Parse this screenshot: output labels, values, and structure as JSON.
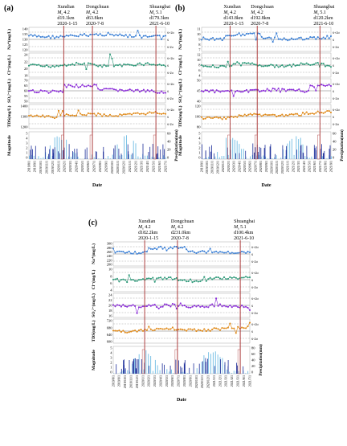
{
  "panels": [
    {
      "label": "(a)",
      "events": [
        {
          "name": "Xundian",
          "mag": "4.2",
          "dist": "d19.1km",
          "date": "2020-1-15"
        },
        {
          "name": "Dongchuan",
          "mag": "4.2",
          "dist": "d63.8km",
          "date": "2020-7-8"
        },
        {
          "name": "Shuangbai",
          "mag": "5.1",
          "dist": "d179.3km",
          "date": "2021-6-10"
        }
      ],
      "ylabels": [
        "Na⁺(mg/L)",
        "Cl⁻(mg/L)",
        "SO₄²⁻(mg/L)",
        "TDS(mg/L)",
        "Magnitude"
      ],
      "right_label": "Precipitation(mm)",
      "xlabel": "Date",
      "sigma_labels": [
        "x̄+2σ",
        "x̄",
        "x̄-2σ"
      ],
      "ticks": {
        "na": [
          "140",
          "135",
          "130",
          "125",
          "120"
        ],
        "cl": [
          "24",
          "22",
          "20",
          "18"
        ],
        "so4": [
          "70",
          "65",
          "60",
          "55",
          "50"
        ],
        "tds": [
          "1400",
          "1300",
          "1200"
        ],
        "mag": [
          "5",
          "4",
          "3",
          "2",
          "1",
          "0"
        ],
        "precip": [
          "60",
          "40",
          "20",
          "0"
        ]
      },
      "dates": [
        "2019/8/1",
        "2019/9/1",
        "2019/10/1",
        "2019/11/1",
        "2019/12/1",
        "2020/1/1",
        "2020/2/1",
        "2020/3/1",
        "2020/4/1",
        "2020/5/1",
        "2020/6/1",
        "2020/7/1",
        "2020/8/1",
        "2020/9/1",
        "2020/10/1",
        "2020/11/1",
        "2020/12/1",
        "2021/1/1",
        "2021/2/1",
        "2021/3/1",
        "2021/4/1",
        "2021/5/1",
        "2021/6/1",
        "2021/7/1"
      ]
    },
    {
      "label": "(b)",
      "events": [
        {
          "name": "Xundian",
          "mag": "4.2",
          "dist": "d143.8km",
          "date": "2020-1-15"
        },
        {
          "name": "Dongchuan",
          "mag": "4.2",
          "dist": "d192.8km",
          "date": "2020-7-8"
        },
        {
          "name": "Shuangbai",
          "mag": "5.1",
          "dist": "d120.2km",
          "date": "2021-6-10"
        }
      ],
      "ylabels": [
        "Na⁺(mg/L)",
        "Cl⁻(mg/L)",
        "SO₄²⁻(mg/L)",
        "TDS(mg/L)",
        "Magnitude"
      ],
      "right_label": "Precipitation(mm)",
      "xlabel": "Date",
      "sigma_labels": [
        "x̄+2σ",
        "x̄",
        "x̄-2σ"
      ],
      "ticks": {
        "na": [
          "11",
          "10",
          "9",
          "8",
          "7"
        ],
        "cl": [
          "12",
          "10",
          "8",
          "6",
          "4"
        ],
        "so4": [
          "50",
          "45",
          "40"
        ],
        "tds": [
          "120",
          "100",
          "80"
        ],
        "mag": [
          "5",
          "4",
          "3",
          "2",
          "1",
          "0"
        ],
        "precip": [
          "60",
          "40",
          "20",
          "0"
        ]
      },
      "dates": [
        "2019/9/1",
        "2019/10/1",
        "2019/11/1",
        "2019/12/1",
        "2020/1/1",
        "2020/2/1",
        "2020/3/1",
        "2020/4/1",
        "2020/5/1",
        "2020/6/1",
        "2020/7/1",
        "2020/8/1",
        "2020/9/1",
        "2020/10/1",
        "2020/11/1",
        "2020/12/1",
        "2021/1/1",
        "2021/2/1",
        "2021/3/1",
        "2021/4/1",
        "2021/5/1",
        "2021/6/1",
        "2021/7/1",
        "2021/8/1",
        "2021/9/1"
      ]
    },
    {
      "label": "(c)",
      "events": [
        {
          "name": "Xundian",
          "mag": "4.2",
          "dist": "d182.2km",
          "date": "2020-1-15"
        },
        {
          "name": "Dongchuan",
          "mag": "4.2",
          "dist": "d231.0km",
          "date": "2020-7-8"
        },
        {
          "name": "Shuangbai",
          "mag": "5.1",
          "dist": "d100.4km",
          "date": "2021-6-10"
        }
      ],
      "ylabels": [
        "Na⁺(mg/L)",
        "Cl⁻(mg/L)",
        "SO₄²⁻(mg/L)",
        "TDS(mg/L)",
        "Magnitude"
      ],
      "right_label": "Precipitation(mm)",
      "xlabel": "Date",
      "sigma_labels": [
        "x̄+2σ",
        "x̄",
        "x̄-2σ"
      ],
      "ticks": {
        "na": [
          "300",
          "280",
          "260",
          "240",
          "220",
          "200"
        ],
        "cl": [
          "10",
          "8",
          "6",
          "4"
        ],
        "so4": [
          "24",
          "22",
          "20",
          "18",
          "16"
        ],
        "tds": [
          "720",
          "680",
          "640",
          "600"
        ],
        "mag": [
          "5",
          "4",
          "3",
          "2",
          "1",
          "0"
        ],
        "precip": [
          "80",
          "60",
          "40",
          "20",
          "0"
        ]
      },
      "dates": [
        "2019/8/1",
        "2019/9/1",
        "2019/10/1",
        "2019/11/1",
        "2019/12/1",
        "2020/1/1",
        "2020/2/1",
        "2020/3/1",
        "2020/4/1",
        "2020/5/1",
        "2020/6/1",
        "2020/7/1",
        "2020/8/1",
        "2020/9/1",
        "2020/10/1",
        "2020/11/1",
        "2020/12/1",
        "2021/1/1",
        "2021/2/1",
        "2021/3/1",
        "2021/4/1",
        "2021/5/1",
        "2021/6/1",
        "2021/7/1"
      ]
    }
  ],
  "colors": {
    "na": "#3a7fd5",
    "cl": "#2f9a7a",
    "so4": "#8a2bd8",
    "tds": "#e08a1a",
    "quake_line": "#a52a2a",
    "mag_bar": "#1e2f9a",
    "precip_bar": "#7ec3e6",
    "guide": "#a83232"
  },
  "chart_data": [
    {
      "type": "line",
      "panel": "(a)",
      "series": [
        {
          "name": "Na⁺(mg/L)",
          "x": [
            "2019/8/1",
            "2019/12/1",
            "2020/1/15",
            "2020/4/1",
            "2020/7/8",
            "2020/10/1",
            "2021/1/1",
            "2021/4/1",
            "2021/6/10",
            "2021/7/1"
          ],
          "values": [
            134,
            133,
            131,
            132,
            133,
            133,
            132,
            132,
            131,
            132
          ]
        },
        {
          "name": "Cl⁻(mg/L)",
          "x": [
            "2019/8/1",
            "2019/12/1",
            "2020/1/15",
            "2020/4/1",
            "2020/7/8",
            "2020/10/1",
            "2021/1/1",
            "2021/4/1",
            "2021/6/10",
            "2021/7/1"
          ],
          "values": [
            21,
            21,
            20.5,
            21,
            21,
            21,
            21.5,
            22,
            21,
            21
          ]
        },
        {
          "name": "SO₄²⁻(mg/L)",
          "x": [
            "2019/8/1",
            "2019/12/1",
            "2020/1/15",
            "2020/4/1",
            "2020/7/8",
            "2020/10/1",
            "2021/1/1",
            "2021/4/1",
            "2021/6/10",
            "2021/7/1"
          ],
          "values": [
            60,
            60,
            64,
            64,
            62,
            62,
            60,
            60,
            64,
            63
          ]
        },
        {
          "name": "TDS(mg/L)",
          "x": [
            "2019/8/1",
            "2019/12/1",
            "2020/1/15",
            "2020/4/1",
            "2020/7/8",
            "2020/10/1",
            "2021/1/1",
            "2021/4/1",
            "2021/6/10",
            "2021/7/1"
          ],
          "values": [
            1310,
            1320,
            1330,
            1335,
            1320,
            1325,
            1330,
            1340,
            1360,
            1350
          ]
        }
      ]
    },
    {
      "type": "line",
      "panel": "(b)",
      "series": [
        {
          "name": "Na⁺(mg/L)",
          "x": [
            "2019/9/1",
            "2019/12/1",
            "2020/1/15",
            "2020/4/1",
            "2020/7/8",
            "2020/10/1",
            "2021/1/1",
            "2021/4/1",
            "2021/6/10",
            "2021/9/1"
          ],
          "values": [
            9.5,
            10,
            10.5,
            10,
            9.5,
            9.5,
            9.3,
            9.2,
            9.5,
            9.5
          ]
        },
        {
          "name": "Cl⁻(mg/L)",
          "x": [
            "2019/9/1",
            "2019/12/1",
            "2020/1/15",
            "2020/4/1",
            "2020/7/8",
            "2020/10/1",
            "2021/1/1",
            "2021/4/1",
            "2021/6/10",
            "2021/9/1"
          ],
          "values": [
            8,
            8,
            8.5,
            8,
            8,
            8,
            8.2,
            8.5,
            9,
            9
          ]
        },
        {
          "name": "SO₄²⁻(mg/L)",
          "x": [
            "2019/9/1",
            "2019/12/1",
            "2020/1/15",
            "2020/4/1",
            "2020/7/8",
            "2020/10/1",
            "2021/1/1",
            "2021/4/1",
            "2021/6/10",
            "2021/9/1"
          ],
          "values": [
            44,
            44,
            45,
            44,
            42,
            42,
            43,
            44,
            47,
            47
          ]
        },
        {
          "name": "TDS(mg/L)",
          "x": [
            "2019/9/1",
            "2019/12/1",
            "2020/1/15",
            "2020/4/1",
            "2020/7/8",
            "2020/10/1",
            "2021/1/1",
            "2021/4/1",
            "2021/6/10",
            "2021/9/1"
          ],
          "values": [
            95,
            98,
            100,
            100,
            97,
            98,
            100,
            102,
            108,
            104
          ]
        }
      ]
    },
    {
      "type": "line",
      "panel": "(c)",
      "series": [
        {
          "name": "Na⁺(mg/L)",
          "x": [
            "2019/8/1",
            "2019/12/1",
            "2020/1/15",
            "2020/4/1",
            "2020/7/8",
            "2020/10/1",
            "2021/1/1",
            "2021/4/1",
            "2021/6/10",
            "2021/7/1"
          ],
          "values": [
            255,
            260,
            270,
            272,
            268,
            255,
            258,
            258,
            255,
            256
          ]
        },
        {
          "name": "Cl⁻(mg/L)",
          "x": [
            "2019/8/1",
            "2019/12/1",
            "2020/1/15",
            "2020/4/1",
            "2020/7/8",
            "2020/10/1",
            "2021/1/1",
            "2021/4/1",
            "2021/6/10",
            "2021/7/1"
          ],
          "values": [
            6,
            6,
            6.2,
            6.2,
            6.3,
            6.5,
            6.8,
            7,
            7.5,
            7.2
          ]
        },
        {
          "name": "SO₄²⁻(mg/L)",
          "x": [
            "2019/8/1",
            "2019/12/1",
            "2020/1/15",
            "2020/4/1",
            "2020/7/8",
            "2020/10/1",
            "2021/1/1",
            "2021/4/1",
            "2021/6/10",
            "2021/7/1"
          ],
          "values": [
            21,
            20.5,
            20,
            21.5,
            21,
            20.5,
            20,
            20,
            19.5,
            20
          ]
        },
        {
          "name": "TDS(mg/L)",
          "x": [
            "2019/8/1",
            "2019/12/1",
            "2020/1/15",
            "2020/4/1",
            "2020/7/8",
            "2020/10/1",
            "2021/1/1",
            "2021/4/1",
            "2021/6/10",
            "2021/7/1"
          ],
          "values": [
            650,
            660,
            670,
            680,
            685,
            690,
            690,
            690,
            680,
            685
          ]
        }
      ]
    }
  ]
}
